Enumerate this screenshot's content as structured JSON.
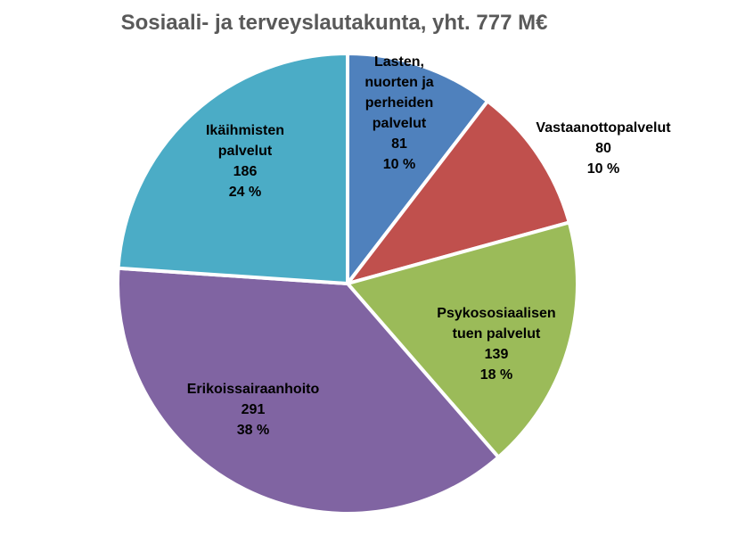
{
  "chart_data": {
    "type": "pie",
    "title": "Sosiaali- ja terveyslautakunta, yht. 777 M€",
    "slices": [
      {
        "name_lines": [
          "Lasten,",
          "nuorten ja",
          "perheiden",
          "palvelut"
        ],
        "value": 81,
        "percent": "10 %",
        "color": "#4f81bd"
      },
      {
        "name_lines": [
          "Vastaanottopalvelut"
        ],
        "value": 80,
        "percent": "10 %",
        "color": "#c0504d"
      },
      {
        "name_lines": [
          "Psykososiaalisen",
          "tuen palvelut"
        ],
        "value": 139,
        "percent": "18 %",
        "color": "#9bbb59"
      },
      {
        "name_lines": [
          "Erikoissairaanhoito"
        ],
        "value": 291,
        "percent": "38 %",
        "color": "#8064a2"
      },
      {
        "name_lines": [
          "Ikäihmisten",
          "palvelut"
        ],
        "value": 186,
        "percent": "24 %",
        "color": "#4bacc6"
      }
    ]
  }
}
